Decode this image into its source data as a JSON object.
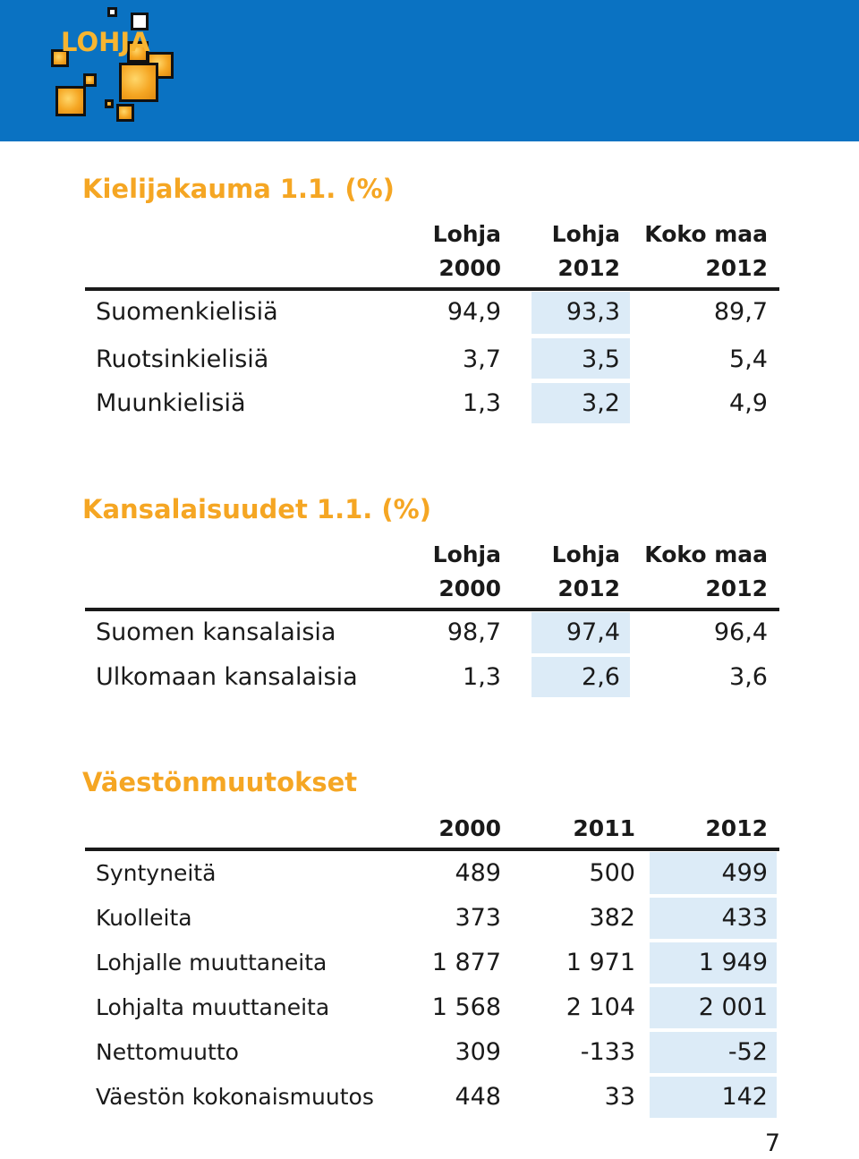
{
  "logo": {
    "text": "LOHJA"
  },
  "kieli": {
    "title": "Kielijakauma 1.1. (%)",
    "columns": [
      {
        "line1": "Lohja",
        "line2": "2000"
      },
      {
        "line1": "Lohja",
        "line2": "2012"
      },
      {
        "line1": "Koko maa",
        "line2": "2012"
      }
    ],
    "rows": [
      {
        "label": "Suomenkielisiä",
        "values": [
          "94,9",
          "93,3",
          "89,7"
        ]
      },
      {
        "label": "Ruotsinkielisiä",
        "values": [
          "3,7",
          "3,5",
          "5,4"
        ]
      },
      {
        "label": "Muunkielisiä",
        "values": [
          "1,3",
          "3,2",
          "4,9"
        ]
      }
    ]
  },
  "kansa": {
    "title": "Kansalaisuudet 1.1. (%)",
    "columns": [
      {
        "line1": "Lohja",
        "line2": "2000"
      },
      {
        "line1": "Lohja",
        "line2": "2012"
      },
      {
        "line1": "Koko maa",
        "line2": "2012"
      }
    ],
    "rows": [
      {
        "label": "Suomen kansalaisia",
        "values": [
          "98,7",
          "97,4",
          "96,4"
        ]
      },
      {
        "label": "Ulkomaan kansalaisia",
        "values": [
          "1,3",
          "2,6",
          "3,6"
        ]
      }
    ]
  },
  "vaesto": {
    "title": "Väestönmuutokset",
    "columns": [
      "2000",
      "2011",
      "2012"
    ],
    "rows": [
      {
        "label": "Syntyneitä",
        "values": [
          "489",
          "500",
          "499"
        ]
      },
      {
        "label": "Kuolleita",
        "values": [
          "373",
          "382",
          "433"
        ]
      },
      {
        "label": "Lohjalle muuttaneita",
        "values": [
          "1 877",
          "1 971",
          "1 949"
        ]
      },
      {
        "label": "Lohjalta muuttaneita",
        "values": [
          "1 568",
          "2 104",
          "2 001"
        ]
      },
      {
        "label": "Nettomuutto",
        "values": [
          "309",
          "-133",
          "-52"
        ]
      },
      {
        "label": "Väestön kokonaismuutos",
        "values": [
          "448",
          "33",
          "142"
        ]
      }
    ]
  },
  "page_number": "7",
  "colors": {
    "header_blue": "#0a72c2",
    "title_orange": "#f5a623",
    "cell_shade": "#dcebf7"
  }
}
